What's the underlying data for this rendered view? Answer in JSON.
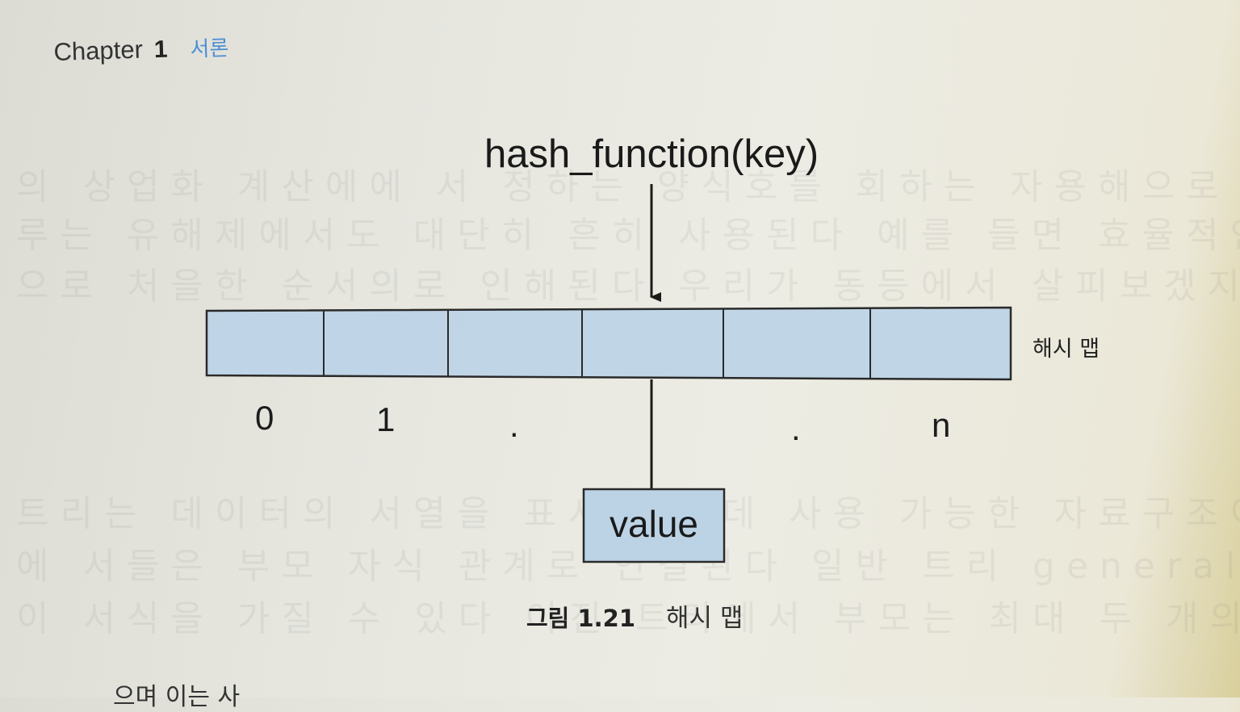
{
  "header": {
    "chapter_word": "Chapter",
    "chapter_number": "1",
    "section_title": "서론"
  },
  "diagram": {
    "function_label": "hash_function(key)",
    "map_label": "해시 맵",
    "slot_indices": [
      "0",
      "1",
      ".",
      ".",
      "n"
    ],
    "value_label": "value",
    "slot_fill_color": "#bcd3e6"
  },
  "caption": {
    "figure_number": "그림 1.21",
    "figure_title": "해시 맵"
  },
  "bottom_text": "으며 이는 사"
}
